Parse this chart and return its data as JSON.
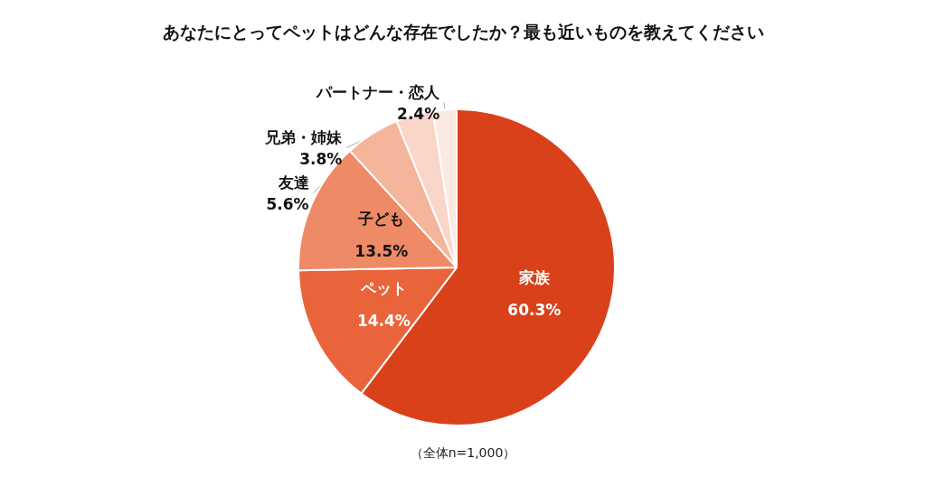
{
  "chart_data": {
    "type": "pie",
    "title": "あなたにとってペットはどんな存在でしたか？最も近いものを教えてください",
    "categories": [
      "家族",
      "ペット",
      "子ども",
      "友達",
      "兄弟・姉妹",
      "パートナー・恋人"
    ],
    "values": [
      60.3,
      14.4,
      13.5,
      5.6,
      3.8,
      2.4
    ],
    "value_labels": [
      "60.3%",
      "14.4%",
      "13.5%",
      "5.6%",
      "3.8%",
      "2.4%"
    ],
    "colors": [
      "#d9411a",
      "#e9643a",
      "#ef8a66",
      "#f5b59b",
      "#f9d6c7",
      "#fce9e2"
    ],
    "annotations": [
      "（全体n=1,000）"
    ],
    "legend": false
  }
}
